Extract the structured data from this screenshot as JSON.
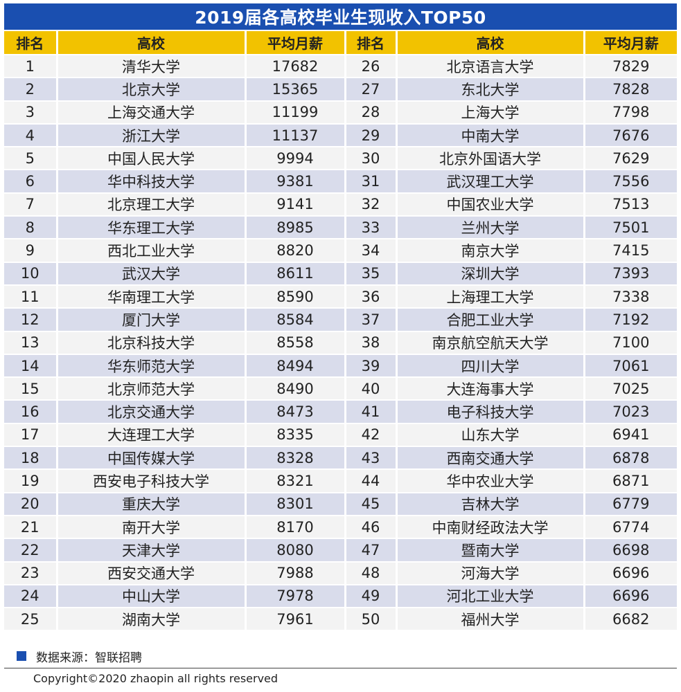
{
  "title": "2019届各高校毕业生现收入TOP50",
  "headers": [
    "排名",
    "高校",
    "平均月薪",
    "排名",
    "高校",
    "平均月薪"
  ],
  "source": "数据来源：智联招聘",
  "copyright": "Copyright©2020 zhaopin all rights reserved",
  "colors": {
    "title_bg": "#1a4fb0",
    "header_bg": "#f2c200",
    "row_light": "#f3f3f3",
    "row_dark": "#d9dceb"
  },
  "chart_data": {
    "type": "table",
    "title": "2019届各高校毕业生现收入TOP50",
    "columns": [
      "排名",
      "高校",
      "平均月薪"
    ],
    "rows": [
      {
        "rank": 1,
        "school": "清华大学",
        "salary": 17682
      },
      {
        "rank": 2,
        "school": "北京大学",
        "salary": 15365
      },
      {
        "rank": 3,
        "school": "上海交通大学",
        "salary": 11199
      },
      {
        "rank": 4,
        "school": "浙江大学",
        "salary": 11137
      },
      {
        "rank": 5,
        "school": "中国人民大学",
        "salary": 9994
      },
      {
        "rank": 6,
        "school": "华中科技大学",
        "salary": 9381
      },
      {
        "rank": 7,
        "school": "北京理工大学",
        "salary": 9141
      },
      {
        "rank": 8,
        "school": "华东理工大学",
        "salary": 8985
      },
      {
        "rank": 9,
        "school": "西北工业大学",
        "salary": 8820
      },
      {
        "rank": 10,
        "school": "武汉大学",
        "salary": 8611
      },
      {
        "rank": 11,
        "school": "华南理工大学",
        "salary": 8590
      },
      {
        "rank": 12,
        "school": "厦门大学",
        "salary": 8584
      },
      {
        "rank": 13,
        "school": "北京科技大学",
        "salary": 8558
      },
      {
        "rank": 14,
        "school": "华东师范大学",
        "salary": 8494
      },
      {
        "rank": 15,
        "school": "北京师范大学",
        "salary": 8490
      },
      {
        "rank": 16,
        "school": "北京交通大学",
        "salary": 8473
      },
      {
        "rank": 17,
        "school": "大连理工大学",
        "salary": 8335
      },
      {
        "rank": 18,
        "school": "中国传媒大学",
        "salary": 8328
      },
      {
        "rank": 19,
        "school": "西安电子科技大学",
        "salary": 8321
      },
      {
        "rank": 20,
        "school": "重庆大学",
        "salary": 8301
      },
      {
        "rank": 21,
        "school": "南开大学",
        "salary": 8170
      },
      {
        "rank": 22,
        "school": "天津大学",
        "salary": 8080
      },
      {
        "rank": 23,
        "school": "西安交通大学",
        "salary": 7988
      },
      {
        "rank": 24,
        "school": "中山大学",
        "salary": 7978
      },
      {
        "rank": 25,
        "school": "湖南大学",
        "salary": 7961
      },
      {
        "rank": 26,
        "school": "北京语言大学",
        "salary": 7829
      },
      {
        "rank": 27,
        "school": "东北大学",
        "salary": 7828
      },
      {
        "rank": 28,
        "school": "上海大学",
        "salary": 7798
      },
      {
        "rank": 29,
        "school": "中南大学",
        "salary": 7676
      },
      {
        "rank": 30,
        "school": "北京外国语大学",
        "salary": 7629
      },
      {
        "rank": 31,
        "school": "武汉理工大学",
        "salary": 7556
      },
      {
        "rank": 32,
        "school": "中国农业大学",
        "salary": 7513
      },
      {
        "rank": 33,
        "school": "兰州大学",
        "salary": 7501
      },
      {
        "rank": 34,
        "school": "南京大学",
        "salary": 7415
      },
      {
        "rank": 35,
        "school": "深圳大学",
        "salary": 7393
      },
      {
        "rank": 36,
        "school": "上海理工大学",
        "salary": 7338
      },
      {
        "rank": 37,
        "school": "合肥工业大学",
        "salary": 7192
      },
      {
        "rank": 38,
        "school": "南京航空航天大学",
        "salary": 7100
      },
      {
        "rank": 39,
        "school": "四川大学",
        "salary": 7061
      },
      {
        "rank": 40,
        "school": "大连海事大学",
        "salary": 7025
      },
      {
        "rank": 41,
        "school": "电子科技大学",
        "salary": 7023
      },
      {
        "rank": 42,
        "school": "山东大学",
        "salary": 6941
      },
      {
        "rank": 43,
        "school": "西南交通大学",
        "salary": 6878
      },
      {
        "rank": 44,
        "school": "华中农业大学",
        "salary": 6871
      },
      {
        "rank": 45,
        "school": "吉林大学",
        "salary": 6779
      },
      {
        "rank": 46,
        "school": "中南财经政法大学",
        "salary": 6774
      },
      {
        "rank": 47,
        "school": "暨南大学",
        "salary": 6698
      },
      {
        "rank": 48,
        "school": "河海大学",
        "salary": 6696
      },
      {
        "rank": 49,
        "school": "河北工业大学",
        "salary": 6696
      },
      {
        "rank": 50,
        "school": "福州大学",
        "salary": 6682
      }
    ]
  }
}
